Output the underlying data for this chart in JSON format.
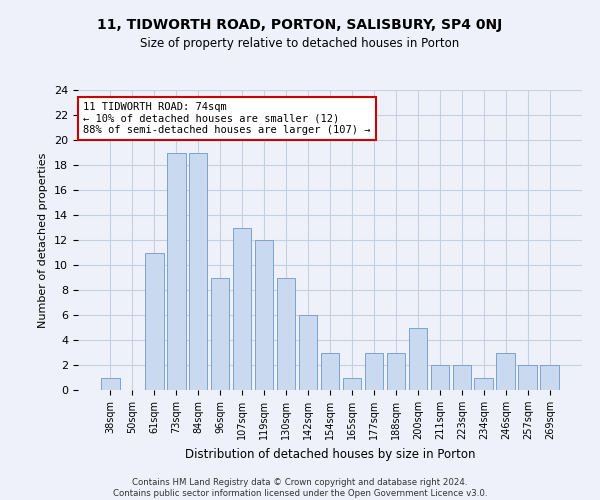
{
  "title_line1": "11, TIDWORTH ROAD, PORTON, SALISBURY, SP4 0NJ",
  "title_line2": "Size of property relative to detached houses in Porton",
  "xlabel": "Distribution of detached houses by size in Porton",
  "ylabel": "Number of detached properties",
  "categories": [
    "38sqm",
    "50sqm",
    "61sqm",
    "73sqm",
    "84sqm",
    "96sqm",
    "107sqm",
    "119sqm",
    "130sqm",
    "142sqm",
    "154sqm",
    "165sqm",
    "177sqm",
    "188sqm",
    "200sqm",
    "211sqm",
    "223sqm",
    "234sqm",
    "246sqm",
    "257sqm",
    "269sqm"
  ],
  "values": [
    1,
    0,
    11,
    19,
    19,
    9,
    13,
    12,
    9,
    6,
    3,
    1,
    3,
    3,
    5,
    2,
    2,
    1,
    3,
    2,
    2
  ],
  "bar_color": "#c9d9f0",
  "bar_edge_color": "#7aa3cc",
  "annotation_title": "11 TIDWORTH ROAD: 74sqm",
  "annotation_line2": "← 10% of detached houses are smaller (12)",
  "annotation_line3": "88% of semi-detached houses are larger (107) →",
  "annotation_box_color": "#ffffff",
  "annotation_box_edge": "#cc0000",
  "ylim": [
    0,
    24
  ],
  "yticks": [
    0,
    2,
    4,
    6,
    8,
    10,
    12,
    14,
    16,
    18,
    20,
    22,
    24
  ],
  "grid_color": "#c8cfe0",
  "background_color": "#eef1fa",
  "footer_line1": "Contains HM Land Registry data © Crown copyright and database right 2024.",
  "footer_line2": "Contains public sector information licensed under the Open Government Licence v3.0."
}
